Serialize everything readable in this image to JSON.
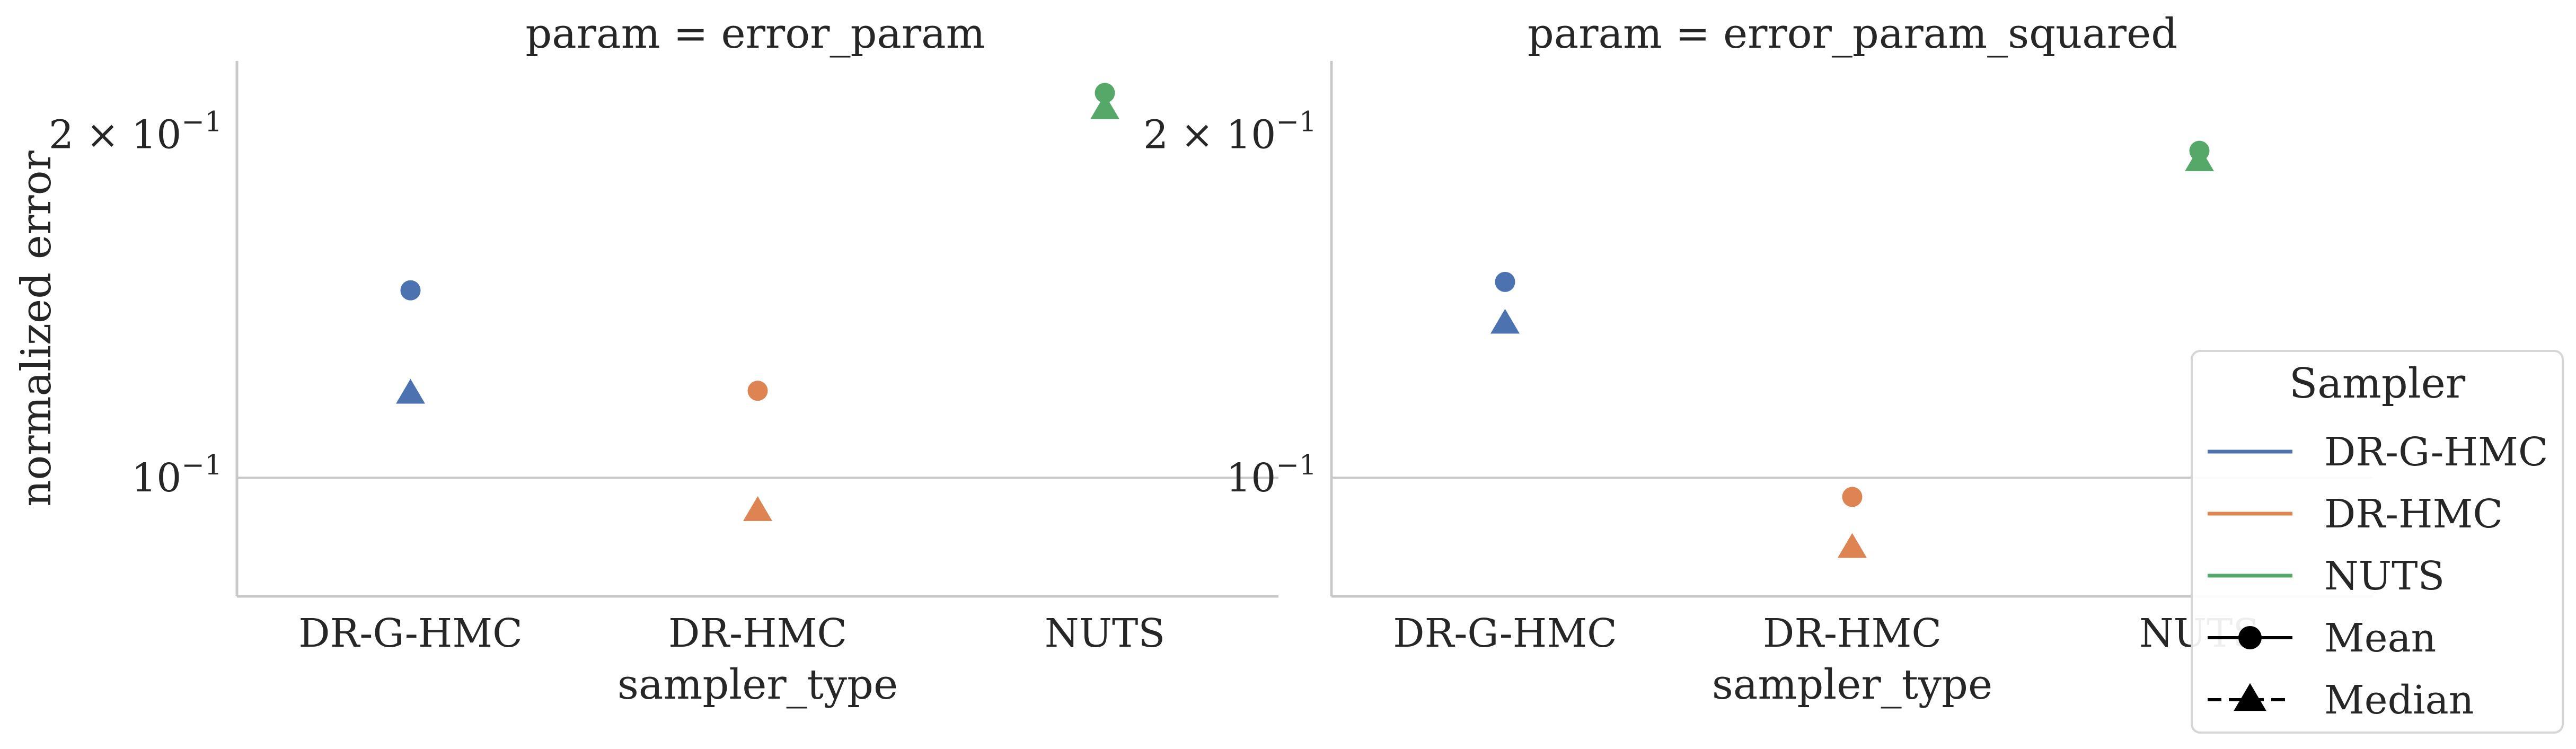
{
  "chart_data": [
    {
      "type": "scatter",
      "title": "param = error_param",
      "xlabel": "sampler_type",
      "ylabel": "normalized error",
      "yscale": "log",
      "ylim": [
        0.0787,
        0.232
      ],
      "categories": [
        "DR-G-HMC",
        "DR-HMC",
        "NUTS"
      ],
      "yticks": [
        {
          "value": 0.1,
          "base": "10",
          "exp": "−1"
        },
        {
          "value": 0.2,
          "base": "2 × 10",
          "exp": "−1"
        }
      ],
      "grid": "horizontal",
      "series": [
        {
          "name": "DR-G-HMC",
          "color": "#4c72b0",
          "points": [
            {
              "stat": "Mean",
              "marker": "circle",
              "y": 0.146
            },
            {
              "stat": "Median",
              "marker": "triangle",
              "y": 0.1185
            }
          ]
        },
        {
          "name": "DR-HMC",
          "color": "#dd8452",
          "points": [
            {
              "stat": "Mean",
              "marker": "circle",
              "y": 0.1192
            },
            {
              "stat": "Median",
              "marker": "triangle",
              "y": 0.0935
            }
          ]
        },
        {
          "name": "NUTS",
          "color": "#55a868",
          "points": [
            {
              "stat": "Mean",
              "marker": "circle",
              "y": 0.2175
            },
            {
              "stat": "Median",
              "marker": "triangle",
              "y": 0.2105
            }
          ]
        }
      ]
    },
    {
      "type": "scatter",
      "title": "param = error_param_squared",
      "xlabel": "sampler_type",
      "ylabel": "",
      "yscale": "log",
      "ylim": [
        0.0787,
        0.232
      ],
      "categories": [
        "DR-G-HMC",
        "DR-HMC",
        "NUTS"
      ],
      "yticks": [
        {
          "value": 0.1,
          "base": "10",
          "exp": "−1"
        },
        {
          "value": 0.2,
          "base": "2 × 10",
          "exp": "−1"
        }
      ],
      "grid": "horizontal",
      "series": [
        {
          "name": "DR-G-HMC",
          "color": "#4c72b0",
          "points": [
            {
              "stat": "Mean",
              "marker": "circle",
              "y": 0.1485
            },
            {
              "stat": "Median",
              "marker": "triangle",
              "y": 0.1365
            }
          ]
        },
        {
          "name": "DR-HMC",
          "color": "#dd8452",
          "points": [
            {
              "stat": "Mean",
              "marker": "circle",
              "y": 0.0962
            },
            {
              "stat": "Median",
              "marker": "triangle",
              "y": 0.0868
            }
          ]
        },
        {
          "name": "NUTS",
          "color": "#55a868",
          "points": [
            {
              "stat": "Mean",
              "marker": "circle",
              "y": 0.1935
            },
            {
              "stat": "Median",
              "marker": "triangle",
              "y": 0.1895
            }
          ]
        }
      ]
    }
  ],
  "legend": {
    "title": "Sampler",
    "placement": "right",
    "samplers": [
      {
        "label": "DR-G-HMC",
        "color": "#4c72b0"
      },
      {
        "label": "DR-HMC",
        "color": "#dd8452"
      },
      {
        "label": "NUTS",
        "color": "#55a868"
      }
    ],
    "stats": [
      {
        "label": "Mean",
        "marker": "circle",
        "line": "solid"
      },
      {
        "label": "Median",
        "marker": "triangle",
        "line": "dashed"
      }
    ]
  }
}
